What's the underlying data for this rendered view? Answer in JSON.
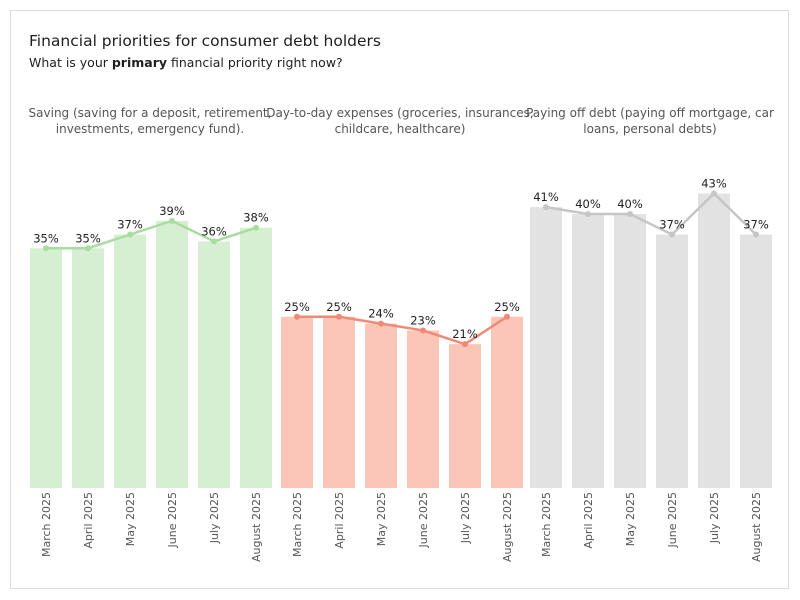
{
  "title": "Financial priorities for consumer debt holders",
  "subtitle": {
    "prefix": "What is your ",
    "emphasis": "primary",
    "suffix": " financial priority right now?"
  },
  "chart_data": {
    "type": "bar",
    "value_format": "percent",
    "ylim": [
      0,
      50
    ],
    "grid": false,
    "categories": [
      "March 2025",
      "April 2025",
      "May 2025",
      "June 2025",
      "July 2025",
      "August 2025"
    ],
    "panels": [
      {
        "title_lines": [
          "Saving (saving for a deposit, retirement,",
          "investments, emergency fund)."
        ],
        "bar_color": "#d6efd2",
        "line_color": "#a9dca0",
        "values": [
          35,
          35,
          37,
          39,
          36,
          38
        ]
      },
      {
        "title_lines": [
          "Day-to-day expenses (groceries, insurances,",
          "childcare, healthcare)"
        ],
        "bar_color": "#fbc5b8",
        "line_color": "#ef8a76",
        "values": [
          25,
          25,
          24,
          23,
          21,
          25
        ]
      },
      {
        "title_lines": [
          "Paying off debt (paying off mortgage, car",
          "loans, personal debts)"
        ],
        "bar_color": "#e2e2e2",
        "line_color": "#c6c6c6",
        "values": [
          41,
          40,
          40,
          37,
          43,
          37
        ]
      }
    ]
  }
}
